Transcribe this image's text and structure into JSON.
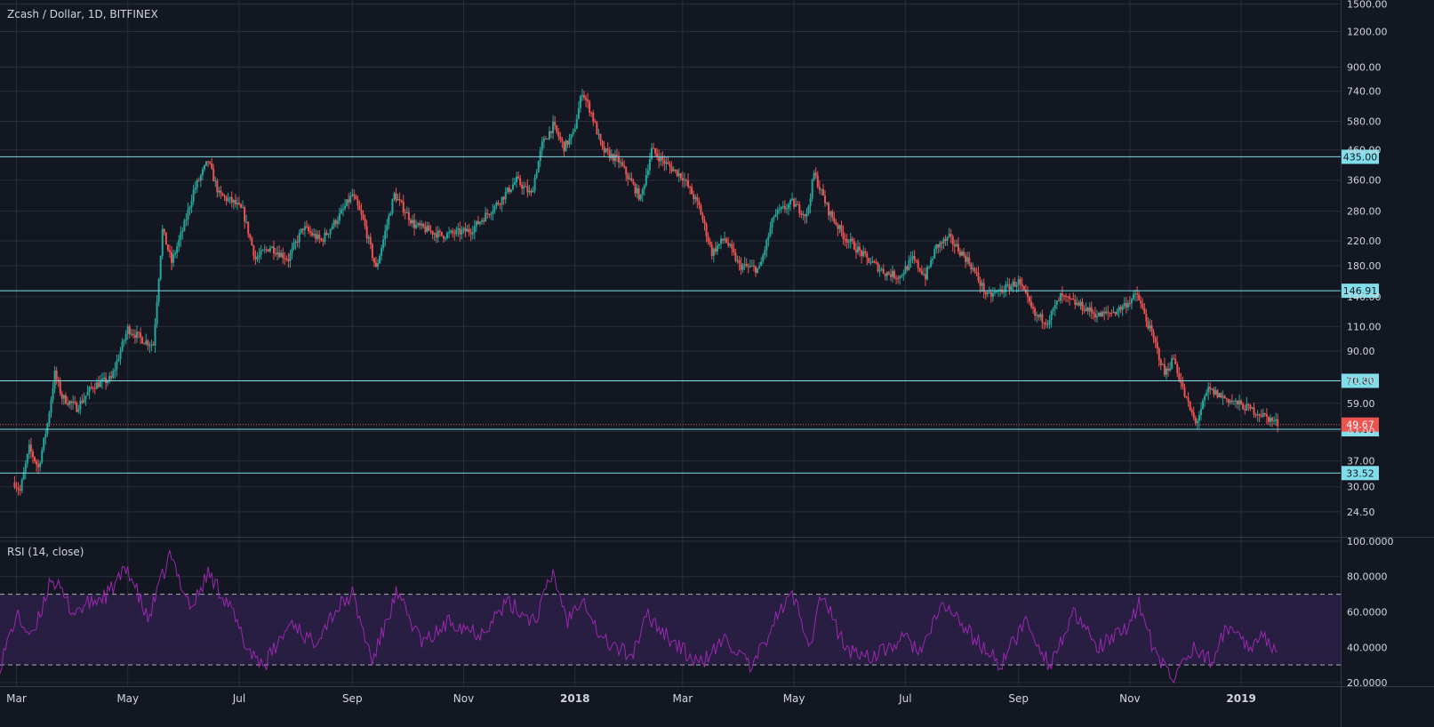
{
  "header": {
    "symbol_title": "Zcash / Dollar, 1D, BITFINEX",
    "rsi_title": "RSI (14, close)"
  },
  "colors": {
    "background": "#131722",
    "grid": "#2a2e39",
    "up": "#26a69a",
    "down": "#ef5350",
    "level_line": "#80deea",
    "last_price": "#ef5350",
    "rsi_line": "#9c27b0",
    "rsi_band": "#2a1f45"
  },
  "chart_data": [
    {
      "type": "candlestick",
      "title": "Zcash / Dollar, 1D, BITFINEX",
      "scale": "log",
      "x_tick_labels": [
        "Mar",
        "May",
        "Jul",
        "Sep",
        "Nov",
        "2018",
        "Mar",
        "May",
        "Jul",
        "Sep",
        "Nov",
        "2019"
      ],
      "y_tick_labels": [
        1500,
        1200,
        900,
        740,
        580,
        460,
        360,
        280,
        220,
        180,
        140,
        110,
        90,
        71,
        59,
        47,
        37,
        30,
        24.5
      ],
      "y_tick_text": [
        "1500.00",
        "1200.00",
        "900.00",
        "740.00",
        "580.00",
        "460.00",
        "360.00",
        "280.00",
        "220.00",
        "180.00",
        "140.00",
        "110.00",
        "90.00",
        "71.00",
        "59.00",
        "47.00",
        "37.00",
        "30.00",
        "24.50"
      ],
      "ylim": [
        20,
        1550
      ],
      "horizontal_levels": [
        {
          "value": 435.0,
          "label": "435.00"
        },
        {
          "value": 146.91,
          "label": "146.91"
        },
        {
          "value": 70.8,
          "label": "70.80"
        },
        {
          "value": 47.8,
          "label": "47.80"
        },
        {
          "value": 33.52,
          "label": "33.52"
        }
      ],
      "last_price": {
        "value": 49.67,
        "label": "49.67"
      },
      "price_path": [
        [
          "2017-02-28",
          31
        ],
        [
          "2017-03-03",
          29
        ],
        [
          "2017-03-08",
          41
        ],
        [
          "2017-03-13",
          35
        ],
        [
          "2017-03-18",
          50
        ],
        [
          "2017-03-22",
          75
        ],
        [
          "2017-03-26",
          62
        ],
        [
          "2017-04-03",
          57
        ],
        [
          "2017-04-12",
          68
        ],
        [
          "2017-04-22",
          72
        ],
        [
          "2017-05-01",
          108
        ],
        [
          "2017-05-10",
          98
        ],
        [
          "2017-05-15",
          95
        ],
        [
          "2017-05-20",
          240
        ],
        [
          "2017-05-25",
          185
        ],
        [
          "2017-06-01",
          250
        ],
        [
          "2017-06-06",
          330
        ],
        [
          "2017-06-14",
          420
        ],
        [
          "2017-06-20",
          320
        ],
        [
          "2017-06-28",
          300
        ],
        [
          "2017-07-03",
          280
        ],
        [
          "2017-07-10",
          190
        ],
        [
          "2017-07-18",
          210
        ],
        [
          "2017-07-28",
          190
        ],
        [
          "2017-08-05",
          245
        ],
        [
          "2017-08-15",
          220
        ],
        [
          "2017-08-25",
          270
        ],
        [
          "2017-09-01",
          320
        ],
        [
          "2017-09-07",
          260
        ],
        [
          "2017-09-14",
          175
        ],
        [
          "2017-09-24",
          320
        ],
        [
          "2017-10-05",
          250
        ],
        [
          "2017-10-20",
          230
        ],
        [
          "2017-11-05",
          240
        ],
        [
          "2017-11-20",
          300
        ],
        [
          "2017-11-30",
          360
        ],
        [
          "2017-12-08",
          320
        ],
        [
          "2017-12-14",
          480
        ],
        [
          "2017-12-20",
          560
        ],
        [
          "2017-12-26",
          470
        ],
        [
          "2017-12-31",
          520
        ],
        [
          "2018-01-05",
          740
        ],
        [
          "2018-01-10",
          620
        ],
        [
          "2018-01-16",
          460
        ],
        [
          "2018-01-25",
          420
        ],
        [
          "2018-02-06",
          310
        ],
        [
          "2018-02-12",
          460
        ],
        [
          "2018-02-20",
          410
        ],
        [
          "2018-03-01",
          370
        ],
        [
          "2018-03-10",
          290
        ],
        [
          "2018-03-17",
          200
        ],
        [
          "2018-03-24",
          225
        ],
        [
          "2018-04-01",
          180
        ],
        [
          "2018-04-12",
          175
        ],
        [
          "2018-04-20",
          270
        ],
        [
          "2018-04-30",
          300
        ],
        [
          "2018-05-08",
          270
        ],
        [
          "2018-05-12",
          380
        ],
        [
          "2018-05-20",
          280
        ],
        [
          "2018-05-28",
          230
        ],
        [
          "2018-06-10",
          190
        ],
        [
          "2018-06-20",
          170
        ],
        [
          "2018-06-28",
          165
        ],
        [
          "2018-07-05",
          190
        ],
        [
          "2018-07-12",
          165
        ],
        [
          "2018-07-18",
          210
        ],
        [
          "2018-07-25",
          225
        ],
        [
          "2018-08-05",
          185
        ],
        [
          "2018-08-15",
          140
        ],
        [
          "2018-08-25",
          150
        ],
        [
          "2018-09-01",
          158
        ],
        [
          "2018-09-10",
          120
        ],
        [
          "2018-09-17",
          115
        ],
        [
          "2018-09-24",
          140
        ],
        [
          "2018-10-05",
          130
        ],
        [
          "2018-10-15",
          120
        ],
        [
          "2018-10-25",
          125
        ],
        [
          "2018-11-05",
          142
        ],
        [
          "2018-11-15",
          95
        ],
        [
          "2018-11-20",
          75
        ],
        [
          "2018-11-25",
          85
        ],
        [
          "2018-12-01",
          63
        ],
        [
          "2018-12-07",
          50
        ],
        [
          "2018-12-14",
          66
        ],
        [
          "2018-12-22",
          62
        ],
        [
          "2019-01-01",
          58
        ],
        [
          "2019-01-12",
          54
        ],
        [
          "2019-01-22",
          49.67
        ]
      ],
      "x_start": "2017-02-20",
      "x_end": "2019-02-05"
    },
    {
      "type": "line",
      "title": "RSI (14, close)",
      "y_tick_labels": [
        100,
        80,
        60,
        40,
        20
      ],
      "y_tick_text": [
        "100.0000",
        "80.0000",
        "60.0000",
        "40.0000",
        "20.0000"
      ],
      "ylim": [
        18,
        102
      ],
      "band": [
        30,
        70
      ],
      "rsi_path": [
        [
          "2017-02-20",
          30
        ],
        [
          "2017-03-01",
          58
        ],
        [
          "2017-03-10",
          45
        ],
        [
          "2017-03-20",
          80
        ],
        [
          "2017-04-01",
          60
        ],
        [
          "2017-04-20",
          70
        ],
        [
          "2017-05-01",
          85
        ],
        [
          "2017-05-12",
          55
        ],
        [
          "2017-05-24",
          92
        ],
        [
          "2017-06-05",
          62
        ],
        [
          "2017-06-14",
          82
        ],
        [
          "2017-06-25",
          65
        ],
        [
          "2017-07-05",
          40
        ],
        [
          "2017-07-15",
          30
        ],
        [
          "2017-07-30",
          55
        ],
        [
          "2017-08-10",
          42
        ],
        [
          "2017-08-22",
          60
        ],
        [
          "2017-09-01",
          70
        ],
        [
          "2017-09-12",
          32
        ],
        [
          "2017-09-25",
          70
        ],
        [
          "2017-10-10",
          42
        ],
        [
          "2017-10-25",
          55
        ],
        [
          "2017-11-10",
          48
        ],
        [
          "2017-11-25",
          65
        ],
        [
          "2017-12-10",
          55
        ],
        [
          "2017-12-20",
          82
        ],
        [
          "2017-12-28",
          55
        ],
        [
          "2018-01-05",
          70
        ],
        [
          "2018-01-15",
          45
        ],
        [
          "2018-02-01",
          35
        ],
        [
          "2018-02-10",
          58
        ],
        [
          "2018-02-25",
          42
        ],
        [
          "2018-03-10",
          30
        ],
        [
          "2018-03-25",
          45
        ],
        [
          "2018-04-08",
          27
        ],
        [
          "2018-04-20",
          55
        ],
        [
          "2018-04-30",
          70
        ],
        [
          "2018-05-10",
          42
        ],
        [
          "2018-05-16",
          70
        ],
        [
          "2018-05-30",
          38
        ],
        [
          "2018-06-15",
          35
        ],
        [
          "2018-06-30",
          45
        ],
        [
          "2018-07-10",
          38
        ],
        [
          "2018-07-22",
          65
        ],
        [
          "2018-08-05",
          48
        ],
        [
          "2018-08-22",
          30
        ],
        [
          "2018-09-05",
          55
        ],
        [
          "2018-09-18",
          30
        ],
        [
          "2018-10-01",
          58
        ],
        [
          "2018-10-15",
          40
        ],
        [
          "2018-10-28",
          48
        ],
        [
          "2018-11-06",
          65
        ],
        [
          "2018-11-15",
          35
        ],
        [
          "2018-11-25",
          22
        ],
        [
          "2018-12-05",
          40
        ],
        [
          "2018-12-15",
          32
        ],
        [
          "2018-12-25",
          52
        ],
        [
          "2019-01-05",
          42
        ],
        [
          "2019-01-15",
          45
        ],
        [
          "2019-01-22",
          37
        ]
      ]
    }
  ]
}
